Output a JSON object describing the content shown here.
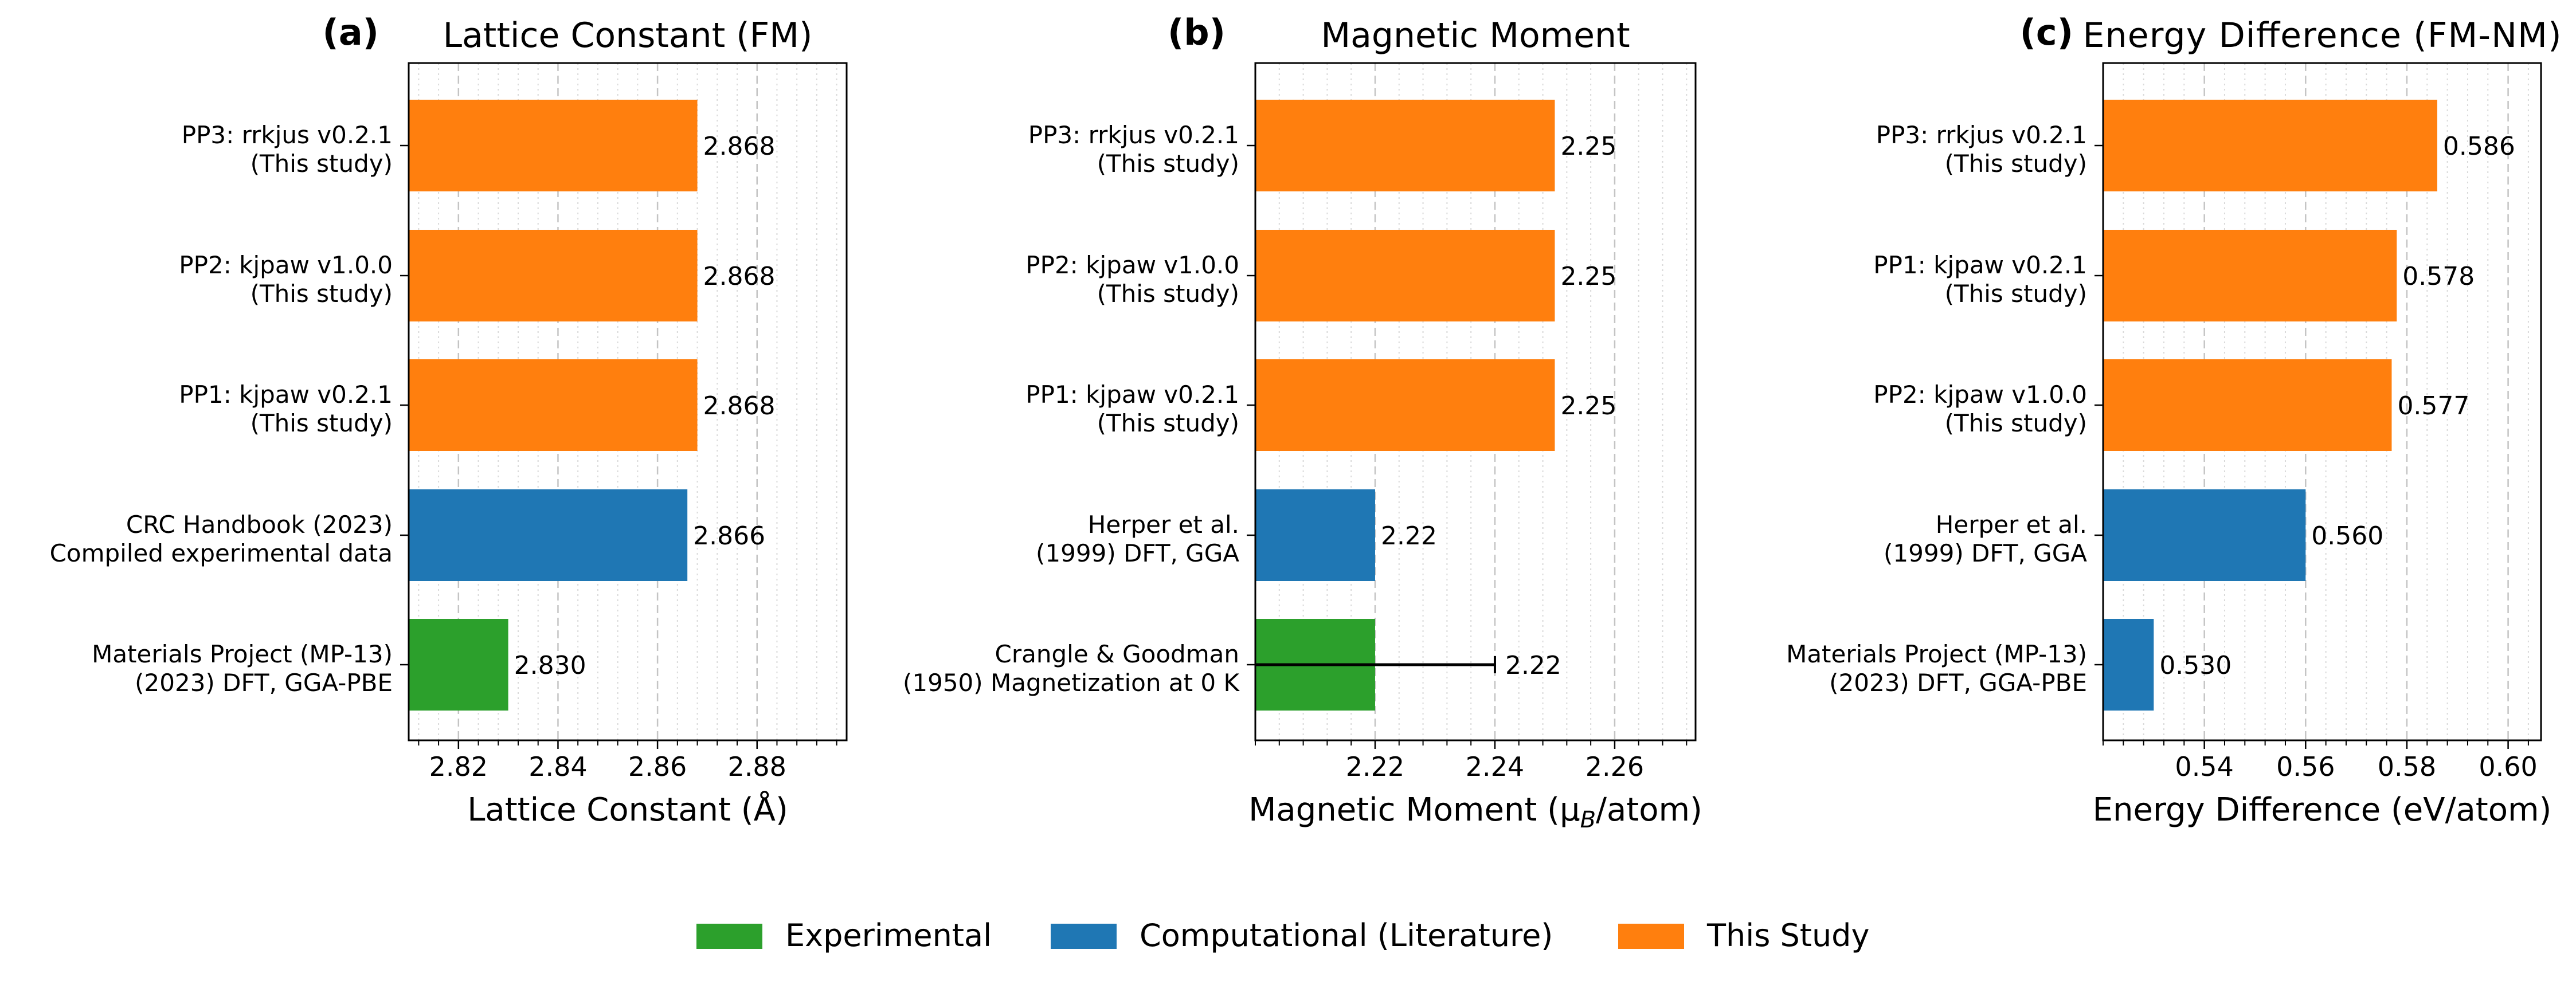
{
  "colors": {
    "experimental": "#2ca02c",
    "computational": "#1f77b4",
    "this_study": "#ff7f0e"
  },
  "legend": {
    "placement": "bottom-center",
    "items": [
      {
        "label": "Experimental",
        "color": "#2ca02c"
      },
      {
        "label": "Computational (Literature)",
        "color": "#1f77b4"
      },
      {
        "label": "This Study",
        "color": "#ff7f0e"
      }
    ]
  },
  "chart_data": [
    {
      "type": "bar",
      "orientation": "horizontal",
      "panel_label": "(a)",
      "title": "Lattice Constant (FM)",
      "xlabel": "Lattice Constant (Å)",
      "xlim": [
        2.81,
        2.898
      ],
      "xticks": [
        2.82,
        2.84,
        2.86,
        2.88
      ],
      "xtick_labels": [
        "2.82",
        "2.84",
        "2.86",
        "2.88"
      ],
      "minor_step": 0.004,
      "grid": true,
      "categories": [
        {
          "line1": "PP3: rrkjus v0.2.1",
          "line2": "(This study)"
        },
        {
          "line1": "PP2: kjpaw v1.0.0",
          "line2": "(This study)"
        },
        {
          "line1": "PP1: kjpaw v0.2.1",
          "line2": "(This study)"
        },
        {
          "line1": "CRC Handbook (2023)",
          "line2": "Compiled experimental data"
        },
        {
          "line1": "Materials Project (MP-13)",
          "line2": "(2023) DFT, GGA-PBE"
        }
      ],
      "values": [
        2.868,
        2.868,
        2.868,
        2.866,
        2.83
      ],
      "value_labels": [
        "2.868",
        "2.868",
        "2.868",
        "2.866",
        "2.830"
      ],
      "groups": [
        "this_study",
        "this_study",
        "this_study",
        "computational",
        "experimental"
      ],
      "errors": [
        null,
        null,
        null,
        null,
        null
      ]
    },
    {
      "type": "bar",
      "orientation": "horizontal",
      "panel_label": "(b)",
      "title": "Magnetic Moment",
      "xlabel_main": "Magnetic Moment (μ",
      "xlabel_sub": "B",
      "xlabel_tail": "/atom)",
      "xlim": [
        2.2,
        2.2735
      ],
      "xticks": [
        2.22,
        2.24,
        2.26
      ],
      "xtick_labels": [
        "2.22",
        "2.24",
        "2.26"
      ],
      "minor_step": 0.004,
      "grid": true,
      "categories": [
        {
          "line1": "PP3: rrkjus v0.2.1",
          "line2": "(This study)"
        },
        {
          "line1": "PP2: kjpaw v1.0.0",
          "line2": "(This study)"
        },
        {
          "line1": "PP1: kjpaw v0.2.1",
          "line2": "(This study)"
        },
        {
          "line1": "Herper et al.",
          "line2": "(1999) DFT, GGA"
        },
        {
          "line1": "Crangle & Goodman",
          "line2": "(1950) Magnetization at 0 K"
        }
      ],
      "values": [
        2.25,
        2.25,
        2.25,
        2.22,
        2.22
      ],
      "value_labels": [
        "2.25",
        "2.25",
        "2.25",
        "2.22",
        "2.22"
      ],
      "groups": [
        "this_study",
        "this_study",
        "this_study",
        "computational",
        "experimental"
      ],
      "errors": [
        null,
        null,
        null,
        null,
        0.02
      ]
    },
    {
      "type": "bar",
      "orientation": "horizontal",
      "panel_label": "(c)",
      "title": "Energy Difference (FM-NM)",
      "xlabel": "Energy Difference (eV/atom)",
      "xlim": [
        0.52,
        0.6065
      ],
      "xticks": [
        0.54,
        0.56,
        0.58,
        0.6
      ],
      "xtick_labels": [
        "0.54",
        "0.56",
        "0.58",
        "0.60"
      ],
      "minor_step": 0.004,
      "grid": true,
      "categories": [
        {
          "line1": "PP3: rrkjus v0.2.1",
          "line2": "(This study)"
        },
        {
          "line1": "PP1: kjpaw v0.2.1",
          "line2": "(This study)"
        },
        {
          "line1": "PP2: kjpaw v1.0.0",
          "line2": "(This study)"
        },
        {
          "line1": "Herper et al.",
          "line2": "(1999) DFT, GGA"
        },
        {
          "line1": "Materials Project (MP-13)",
          "line2": "(2023) DFT, GGA-PBE"
        }
      ],
      "values": [
        0.586,
        0.578,
        0.577,
        0.56,
        0.53
      ],
      "value_labels": [
        "0.586",
        "0.578",
        "0.577",
        "0.560",
        "0.530"
      ],
      "groups": [
        "this_study",
        "this_study",
        "this_study",
        "computational",
        "computational"
      ],
      "errors": [
        null,
        null,
        null,
        null,
        null
      ]
    }
  ]
}
